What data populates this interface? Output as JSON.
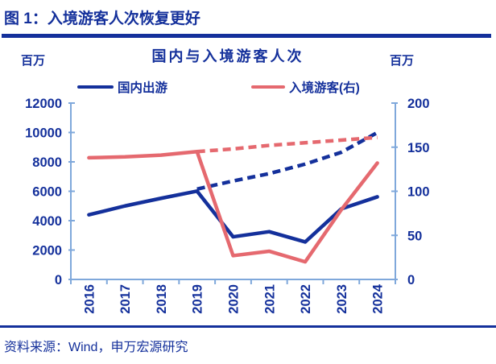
{
  "header": {
    "title": "图 1：入境游客人次恢复更好"
  },
  "chart": {
    "title": "国内与入境游客人次",
    "left_unit": "百万",
    "right_unit": "百万"
  },
  "legend": [
    {
      "label": "国内出游",
      "color": "#14309B",
      "style": "solid"
    },
    {
      "label": "入境游客(右)",
      "color": "#E5696F",
      "style": "solid"
    }
  ],
  "colors": {
    "navy": "#14309B",
    "red": "#E5696F",
    "axis": "#7FA8DB"
  },
  "chart_data": {
    "type": "line",
    "title": "国内与入境游客人次",
    "categories": [
      "2016",
      "2017",
      "2018",
      "2019",
      "2020",
      "2021",
      "2022",
      "2023",
      "2024"
    ],
    "left_axis": {
      "label": "百万",
      "min": 0,
      "max": 12000,
      "ticks": [
        0,
        2000,
        4000,
        6000,
        8000,
        10000,
        12000
      ]
    },
    "right_axis": {
      "label": "百万",
      "min": 0,
      "max": 200,
      "ticks": [
        0,
        50,
        100,
        150,
        200
      ]
    },
    "grid": false,
    "legend_position": "top",
    "series": [
      {
        "name": "国内出游",
        "axis": "left",
        "style": "solid",
        "color": "#14309B",
        "values": [
          4400,
          5000,
          5520,
          6010,
          2900,
          3250,
          2550,
          4800,
          5620
        ]
      },
      {
        "name": "国内出游趋势外推(虚线)",
        "axis": "left",
        "style": "dashed",
        "color": "#14309B",
        "values": [
          null,
          null,
          null,
          6150,
          6700,
          7200,
          7850,
          8650,
          9990
        ]
      },
      {
        "name": "入境游客(右)",
        "axis": "right",
        "style": "solid",
        "color": "#E5696F",
        "values": [
          138,
          139,
          141,
          145,
          27,
          32,
          20,
          79,
          132
        ]
      },
      {
        "name": "入境游客趋势外推(虚线)",
        "axis": "right",
        "style": "dashed",
        "color": "#E5696F",
        "values": [
          null,
          null,
          null,
          145,
          148,
          152,
          155,
          158,
          161
        ]
      }
    ]
  },
  "footer": {
    "source": "资料来源：Wind，申万宏源研究"
  }
}
